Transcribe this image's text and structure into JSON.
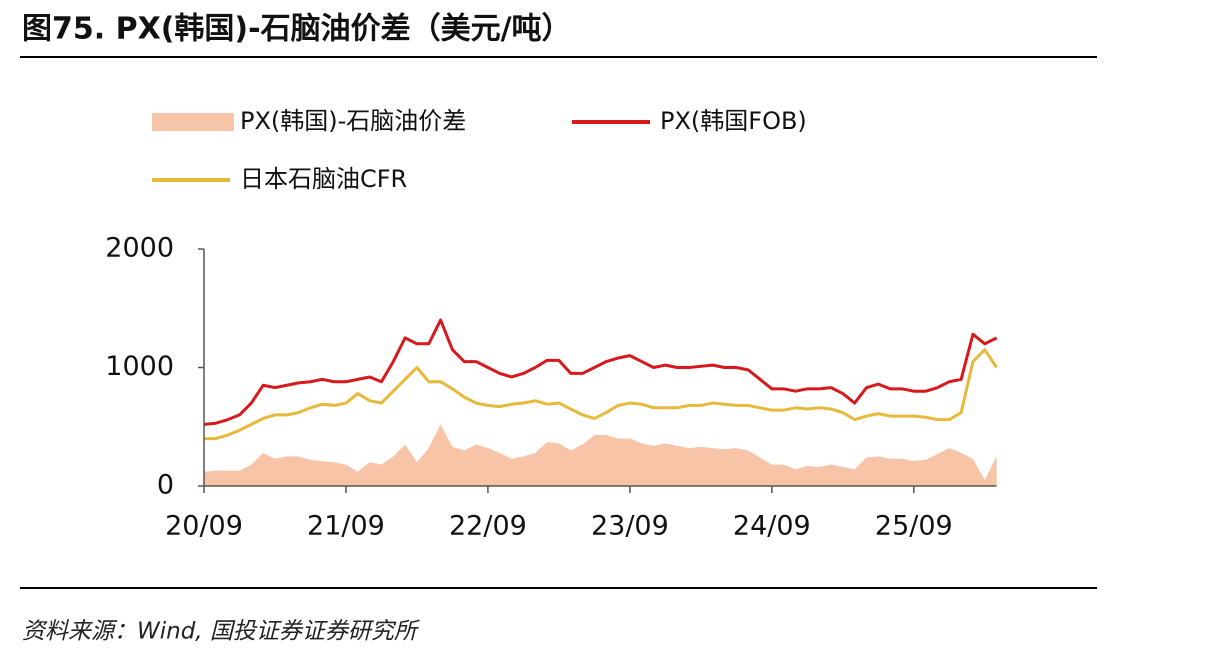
{
  "chart_data": {
    "type": "line",
    "title": "图75. PX(韩国)-石脑油价差（美元/吨）",
    "source": "资料来源：Wind, 国投证券证券研究所",
    "categories": [
      "20/09",
      null,
      null,
      null,
      null,
      null,
      null,
      null,
      null,
      null,
      null,
      null,
      "21/09",
      null,
      null,
      null,
      null,
      null,
      null,
      null,
      null,
      null,
      null,
      null,
      "22/09",
      null,
      null,
      null,
      null,
      null,
      null,
      null,
      null,
      null,
      null,
      null,
      "23/09",
      null,
      null,
      null,
      null,
      null,
      null,
      null,
      null,
      null,
      null,
      null,
      "24/09",
      null,
      null,
      null,
      null,
      null,
      null,
      null,
      null,
      null,
      null,
      null,
      "25/09",
      null,
      null,
      null,
      null,
      null,
      null,
      null
    ],
    "ylim": [
      0,
      2000
    ],
    "yticks": [
      0,
      1000,
      2000
    ],
    "grid": false,
    "series": [
      {
        "name": "PX(韩国)-石脑油价差",
        "type": "area",
        "color": "#f7c4a8",
        "values": [
          120,
          130,
          130,
          130,
          180,
          280,
          230,
          250,
          250,
          220,
          210,
          200,
          180,
          120,
          200,
          180,
          250,
          350,
          200,
          320,
          520,
          330,
          300,
          350,
          320,
          280,
          230,
          250,
          280,
          370,
          360,
          300,
          350,
          430,
          430,
          400,
          400,
          360,
          340,
          360,
          340,
          320,
          330,
          320,
          310,
          320,
          300,
          240,
          180,
          180,
          140,
          170,
          160,
          180,
          160,
          140,
          240,
          250,
          230,
          230,
          210,
          220,
          270,
          320,
          280,
          230,
          50,
          250
        ]
      },
      {
        "name": "PX(韩国FOB)",
        "type": "line",
        "color": "#d7191c",
        "values": [
          520,
          530,
          560,
          600,
          700,
          850,
          830,
          850,
          870,
          880,
          900,
          880,
          880,
          900,
          920,
          880,
          1050,
          1250,
          1200,
          1200,
          1400,
          1150,
          1050,
          1050,
          1000,
          950,
          920,
          950,
          1000,
          1060,
          1060,
          950,
          950,
          1000,
          1050,
          1080,
          1100,
          1050,
          1000,
          1020,
          1000,
          1000,
          1010,
          1020,
          1000,
          1000,
          980,
          900,
          820,
          820,
          800,
          820,
          820,
          830,
          780,
          700,
          830,
          860,
          820,
          820,
          800,
          800,
          830,
          880,
          900,
          1280,
          1200,
          1250
        ]
      },
      {
        "name": "日本石脑油CFR",
        "type": "line",
        "color": "#e8b83a",
        "values": [
          400,
          400,
          430,
          470,
          520,
          570,
          600,
          600,
          620,
          660,
          690,
          680,
          700,
          780,
          720,
          700,
          800,
          900,
          1000,
          880,
          880,
          820,
          750,
          700,
          680,
          670,
          690,
          700,
          720,
          690,
          700,
          650,
          600,
          570,
          620,
          680,
          700,
          690,
          660,
          660,
          660,
          680,
          680,
          700,
          690,
          680,
          680,
          660,
          640,
          640,
          660,
          650,
          660,
          650,
          620,
          560,
          590,
          610,
          590,
          590,
          590,
          580,
          560,
          560,
          620,
          1050,
          1150,
          1000
        ]
      }
    ]
  }
}
